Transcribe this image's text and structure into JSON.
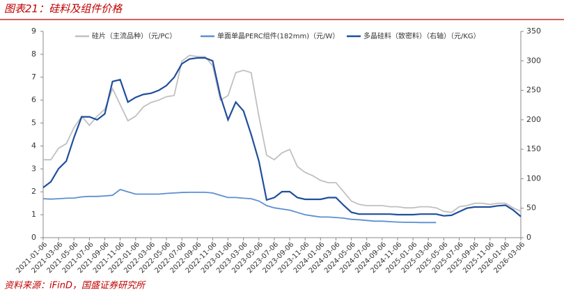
{
  "header": {
    "title": "图表21：硅料及组件价格"
  },
  "chart_data": {
    "type": "line",
    "categories": [
      "2021-01-06",
      null,
      "2021-03-06",
      null,
      "2021-05-06",
      null,
      "2021-07-06",
      null,
      "2021-09-06",
      null,
      "2021-11-06",
      null,
      "2022-01-06",
      null,
      "2022-03-06",
      null,
      "2022-05-06",
      null,
      "2022-07-06",
      null,
      "2022-09-06",
      null,
      "2022-11-06",
      null,
      "2023-01-06",
      null,
      "2023-03-06",
      null,
      "2023-05-06",
      null,
      "2023-07-06",
      null,
      "2023-09-06",
      null,
      "2023-11-06",
      null,
      "2024-01-06",
      null,
      "2024-03-06",
      null,
      "2024-05-06",
      null,
      "2024-07-06",
      null,
      "2024-09-06",
      null,
      "2024-11-06",
      null,
      "2025-01-06",
      null,
      "2025-03-06",
      null,
      "2025-05-06",
      null,
      "2025-07-06",
      null,
      "2025-09-06",
      null,
      "2025-11-06",
      null,
      "2026-01-06",
      null,
      "2026-03-06"
    ],
    "series": [
      {
        "name": "硅片（主流品种）（元/PC）",
        "color": "#c0c0c0",
        "values": [
          3.4,
          3.4,
          3.9,
          4.1,
          4.8,
          5.3,
          4.9,
          5.3,
          5.6,
          6.5,
          5.8,
          5.1,
          5.3,
          5.7,
          5.9,
          6.0,
          6.15,
          6.2,
          7.7,
          7.95,
          7.9,
          7.9,
          7.5,
          6.0,
          6.2,
          7.2,
          7.3,
          7.2,
          5.3,
          3.6,
          3.4,
          3.7,
          3.85,
          3.1,
          2.85,
          2.7,
          2.5,
          2.4,
          2.4,
          2.0,
          1.6,
          1.45,
          1.4,
          1.4,
          1.4,
          1.35,
          1.35,
          1.3,
          1.3,
          1.35,
          1.35,
          1.3,
          1.15,
          1.1,
          1.35,
          1.4,
          1.5,
          1.5,
          1.45,
          1.5,
          1.5,
          1.3,
          1.15
        ]
      },
      {
        "name": "单面单晶PERC组件(182mm)（元/W）",
        "color": "#5b8fd0",
        "values": [
          1.7,
          1.68,
          1.7,
          1.72,
          1.73,
          1.78,
          1.8,
          1.8,
          1.82,
          1.85,
          2.1,
          2.0,
          1.9,
          1.9,
          1.9,
          1.9,
          1.93,
          1.95,
          1.97,
          1.98,
          1.98,
          1.98,
          1.95,
          1.85,
          1.75,
          1.75,
          1.72,
          1.7,
          1.6,
          1.4,
          1.3,
          1.25,
          1.2,
          1.1,
          1.0,
          0.95,
          0.9,
          0.9,
          0.88,
          0.85,
          0.8,
          0.78,
          0.75,
          0.72,
          0.72,
          0.7,
          0.68,
          0.67,
          0.67,
          0.66,
          0.66,
          0.66,
          null,
          null,
          null,
          null,
          null,
          null,
          null,
          null,
          null,
          null,
          null
        ]
      },
      {
        "name": "多晶硅料（致密料）（右轴）（元/KG）",
        "color": "#1f4e9c",
        "axis": "y2",
        "values": [
          85,
          95,
          117,
          130,
          170,
          205,
          205,
          200,
          210,
          265,
          268,
          230,
          238,
          243,
          245,
          250,
          258,
          272,
          295,
          303,
          305,
          305,
          300,
          240,
          200,
          230,
          215,
          175,
          130,
          64,
          68,
          78,
          78,
          68,
          65,
          65,
          65,
          68,
          68,
          55,
          43,
          40,
          40,
          40,
          40,
          40,
          39,
          39,
          39,
          40,
          40,
          40,
          37,
          38,
          44,
          50,
          52,
          52,
          52,
          54,
          55,
          47,
          36
        ]
      }
    ],
    "ylim": [
      0,
      9
    ],
    "yticks": [
      0,
      1,
      2,
      3,
      4,
      5,
      6,
      7,
      8,
      9
    ],
    "y2lim": [
      0,
      350
    ],
    "y2ticks": [
      0,
      50,
      100,
      150,
      200,
      250,
      300,
      350
    ],
    "legend": "top"
  },
  "source": "资料来源：iFinD，国盛证券研究所"
}
